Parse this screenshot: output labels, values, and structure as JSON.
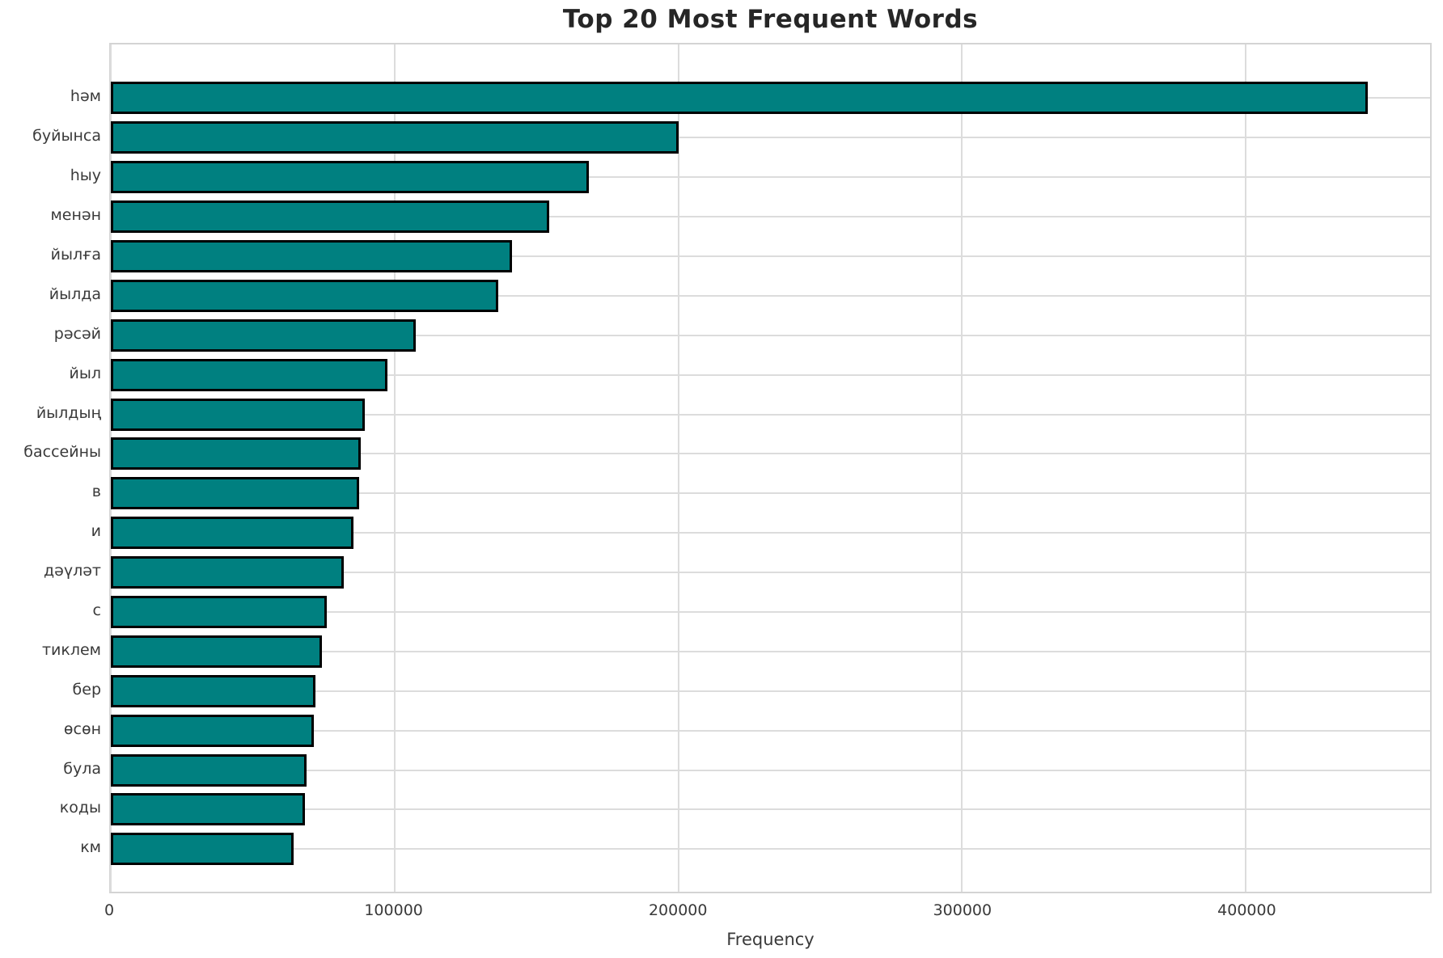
{
  "title": "Top 20 Most Frequent Words",
  "chart_data": {
    "type": "bar",
    "orientation": "horizontal",
    "title": "Top 20 Most Frequent Words",
    "xlabel": "Frequency",
    "ylabel": "",
    "categories": [
      "һәм",
      "буйынса",
      "һыу",
      "менән",
      "йылға",
      "йылда",
      "рәсәй",
      "йыл",
      "йылдың",
      "бассейны",
      "в",
      "и",
      "дәүләт",
      "с",
      "тиклем",
      "бер",
      "өсөн",
      "була",
      "коды",
      "км"
    ],
    "values": [
      443000,
      200000,
      168500,
      154500,
      141500,
      136500,
      107500,
      97500,
      89500,
      88000,
      87500,
      85500,
      82000,
      76000,
      74500,
      72000,
      71500,
      69000,
      68500,
      64500
    ],
    "x_ticks": [
      0,
      100000,
      200000,
      300000,
      400000
    ],
    "x_tick_labels": [
      "0",
      "100000",
      "200000",
      "300000",
      "400000"
    ],
    "xlim": [
      0,
      465000
    ],
    "grid": true,
    "legend": false,
    "colors": {
      "bar_fill": "#008080",
      "bar_edge": "#000000",
      "grid": "#dcdcdc",
      "spine": "#d4d4d4",
      "background": "#ffffff",
      "title_text": "#262626",
      "tick_text": "#3a3a3a"
    }
  }
}
